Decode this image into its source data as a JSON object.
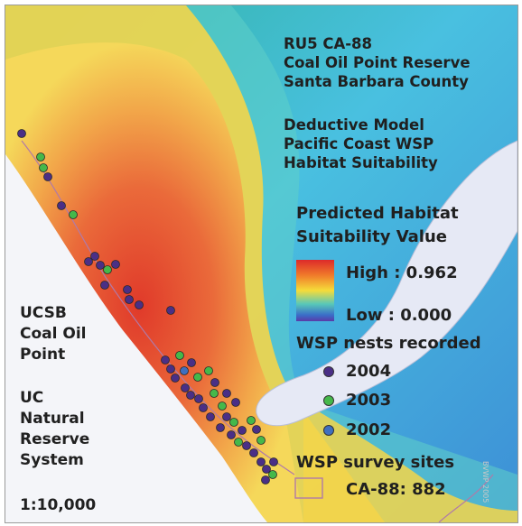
{
  "title_block": {
    "lines": [
      "RU5 CA-88",
      "Coal Oil Point Reserve",
      "Santa Barbara County"
    ]
  },
  "model_block": {
    "lines": [
      "Deductive Model",
      "Pacific Coast WSP",
      "Habitat Suitability"
    ]
  },
  "legend": {
    "heading_lines": [
      "Predicted Habitat",
      "Suitability Value"
    ],
    "high_label": "High : 0.962",
    "low_label": "Low : 0.000",
    "high_value": 0.962,
    "low_value": 0.0,
    "ramp_colors": [
      "#dd2a2a",
      "#f07a2a",
      "#f5dc3a",
      "#58c8b8",
      "#3a6ec8",
      "#5a3aa8"
    ],
    "nests_heading": "WSP nests recorded",
    "nest_years": [
      {
        "year": "2004",
        "color": "#4a2f86"
      },
      {
        "year": "2003",
        "color": "#45b84a"
      },
      {
        "year": "2002",
        "color": "#3f6fbf"
      }
    ],
    "survey_heading": "WSP survey sites",
    "survey_label": "CA-88: 882",
    "survey_color": "#b07aa8"
  },
  "left_block": {
    "ucsb_lines": [
      "UCSB",
      "Coal Oil",
      "Point"
    ],
    "uc_lines": [
      "UC",
      "Natural",
      "Reserve",
      "System"
    ],
    "scale": "1:10,000"
  },
  "credit": "BVWP 2005"
}
